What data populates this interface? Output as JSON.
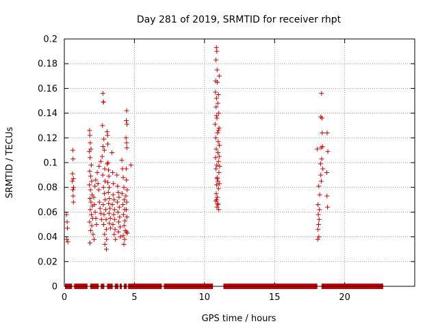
{
  "chart_data": {
    "type": "scatter",
    "title": "Day 281 of 2019, SRMTID for receiver rhpt",
    "xlabel": "GPS time / hours",
    "ylabel": "SRMTID / TECUs",
    "xlim": [
      0,
      25
    ],
    "ylim": [
      0,
      0.2
    ],
    "xticks": [
      0,
      5,
      10,
      15,
      20
    ],
    "xtick_labels": [
      "0",
      "5",
      "10",
      "15",
      "20"
    ],
    "yticks": [
      0,
      0.02,
      0.04,
      0.06,
      0.08,
      0.1,
      0.12,
      0.14,
      0.16,
      0.18,
      0.2
    ],
    "ytick_labels": [
      "0",
      "0.02",
      "0.04",
      "0.06",
      "0.08",
      "0.1",
      "0.12",
      "0.14",
      "0.16",
      "0.18",
      "0.2"
    ],
    "grid": true,
    "marker": "+",
    "colors": {
      "series": "#cc0000",
      "grid": "#999999",
      "axes": "#000000"
    },
    "zero_segments": [
      [
        0.05,
        0.55
      ],
      [
        0.7,
        1.65
      ],
      [
        1.85,
        2.45
      ],
      [
        2.6,
        2.85
      ],
      [
        3.05,
        3.45
      ],
      [
        3.6,
        3.85
      ],
      [
        3.95,
        4.1
      ],
      [
        4.25,
        4.45
      ],
      [
        4.55,
        6.95
      ],
      [
        7.1,
        10.6
      ],
      [
        11.35,
        18.05
      ],
      [
        18.35,
        22.75
      ]
    ],
    "points": [
      [
        0.15,
        0.058
      ],
      [
        0.2,
        0.052
      ],
      [
        0.22,
        0.047
      ],
      [
        0.18,
        0.038
      ],
      [
        0.25,
        0.036
      ],
      [
        0.6,
        0.11
      ],
      [
        0.62,
        0.103
      ],
      [
        0.58,
        0.091
      ],
      [
        0.64,
        0.087
      ],
      [
        0.57,
        0.085
      ],
      [
        0.66,
        0.08
      ],
      [
        0.61,
        0.078
      ],
      [
        0.63,
        0.073
      ],
      [
        0.65,
        0.068
      ],
      [
        1.8,
        0.126
      ],
      [
        1.82,
        0.122
      ],
      [
        1.85,
        0.116
      ],
      [
        1.9,
        0.111
      ],
      [
        1.78,
        0.109
      ],
      [
        1.84,
        0.104
      ],
      [
        1.92,
        0.098
      ],
      [
        1.81,
        0.093
      ],
      [
        1.88,
        0.089
      ],
      [
        1.95,
        0.085
      ],
      [
        1.79,
        0.082
      ],
      [
        1.86,
        0.078
      ],
      [
        1.98,
        0.074
      ],
      [
        1.83,
        0.071
      ],
      [
        1.9,
        0.068
      ],
      [
        2.0,
        0.065
      ],
      [
        1.85,
        0.062
      ],
      [
        1.93,
        0.058
      ],
      [
        2.02,
        0.055
      ],
      [
        1.8,
        0.052
      ],
      [
        1.96,
        0.049
      ],
      [
        1.88,
        0.045
      ],
      [
        2.05,
        0.042
      ],
      [
        1.83,
        0.035
      ],
      [
        2.1,
        0.072
      ],
      [
        2.15,
        0.066
      ],
      [
        2.2,
        0.06
      ],
      [
        2.25,
        0.055
      ],
      [
        2.3,
        0.05
      ],
      [
        2.18,
        0.081
      ],
      [
        2.24,
        0.086
      ],
      [
        2.35,
        0.092
      ],
      [
        2.4,
        0.083
      ],
      [
        2.45,
        0.078
      ],
      [
        2.12,
        0.038
      ],
      [
        2.5,
        0.068
      ],
      [
        2.55,
        0.063
      ],
      [
        2.6,
        0.059
      ],
      [
        2.65,
        0.054
      ],
      [
        2.48,
        0.097
      ],
      [
        2.6,
        0.101
      ],
      [
        2.75,
        0.156
      ],
      [
        2.78,
        0.149
      ],
      [
        2.8,
        0.149
      ],
      [
        2.72,
        0.13
      ],
      [
        2.82,
        0.119
      ],
      [
        2.76,
        0.113
      ],
      [
        2.85,
        0.11
      ],
      [
        2.7,
        0.105
      ],
      [
        2.88,
        0.095
      ],
      [
        2.74,
        0.09
      ],
      [
        2.9,
        0.085
      ],
      [
        2.79,
        0.08
      ],
      [
        2.86,
        0.075
      ],
      [
        2.92,
        0.07
      ],
      [
        2.77,
        0.066
      ],
      [
        2.95,
        0.062
      ],
      [
        2.83,
        0.058
      ],
      [
        2.98,
        0.054
      ],
      [
        2.81,
        0.05
      ],
      [
        3.0,
        0.046
      ],
      [
        2.87,
        0.042
      ],
      [
        3.02,
        0.038
      ],
      [
        2.89,
        0.034
      ],
      [
        3.0,
        0.03
      ],
      [
        3.05,
        0.125
      ],
      [
        3.08,
        0.122
      ],
      [
        3.1,
        0.115
      ],
      [
        3.12,
        0.1
      ],
      [
        3.06,
        0.099
      ],
      [
        3.15,
        0.094
      ],
      [
        3.18,
        0.089
      ],
      [
        3.1,
        0.084
      ],
      [
        3.2,
        0.08
      ],
      [
        3.14,
        0.076
      ],
      [
        3.22,
        0.071
      ],
      [
        3.16,
        0.067
      ],
      [
        3.25,
        0.063
      ],
      [
        3.19,
        0.059
      ],
      [
        3.28,
        0.055
      ],
      [
        3.21,
        0.051
      ],
      [
        3.3,
        0.047
      ],
      [
        3.4,
        0.108
      ],
      [
        3.45,
        0.092
      ],
      [
        3.5,
        0.083
      ],
      [
        3.48,
        0.074
      ],
      [
        3.55,
        0.07
      ],
      [
        3.42,
        0.066
      ],
      [
        3.58,
        0.062
      ],
      [
        3.52,
        0.058
      ],
      [
        3.6,
        0.054
      ],
      [
        3.47,
        0.05
      ],
      [
        3.62,
        0.046
      ],
      [
        3.56,
        0.042
      ],
      [
        3.65,
        0.038
      ],
      [
        3.75,
        0.09
      ],
      [
        3.8,
        0.081
      ],
      [
        3.85,
        0.076
      ],
      [
        3.9,
        0.072
      ],
      [
        3.78,
        0.068
      ],
      [
        3.92,
        0.064
      ],
      [
        3.82,
        0.06
      ],
      [
        3.95,
        0.056
      ],
      [
        3.88,
        0.052
      ],
      [
        3.98,
        0.048
      ],
      [
        3.86,
        0.044
      ],
      [
        4.0,
        0.04
      ],
      [
        4.1,
        0.102
      ],
      [
        4.15,
        0.095
      ],
      [
        4.2,
        0.088
      ],
      [
        4.25,
        0.08
      ],
      [
        4.12,
        0.075
      ],
      [
        4.28,
        0.07
      ],
      [
        4.18,
        0.066
      ],
      [
        4.3,
        0.062
      ],
      [
        4.22,
        0.058
      ],
      [
        4.32,
        0.053
      ],
      [
        4.26,
        0.049
      ],
      [
        4.35,
        0.045
      ],
      [
        4.2,
        0.041
      ],
      [
        4.3,
        0.038
      ],
      [
        4.25,
        0.034
      ],
      [
        4.45,
        0.142
      ],
      [
        4.42,
        0.134
      ],
      [
        4.47,
        0.131
      ],
      [
        4.4,
        0.12
      ],
      [
        4.44,
        0.116
      ],
      [
        4.46,
        0.112
      ],
      [
        4.41,
        0.095
      ],
      [
        4.43,
        0.086
      ],
      [
        4.48,
        0.078
      ],
      [
        4.39,
        0.073
      ],
      [
        4.45,
        0.068
      ],
      [
        4.42,
        0.062
      ],
      [
        4.47,
        0.056
      ],
      [
        4.44,
        0.044
      ],
      [
        4.49,
        0.043
      ],
      [
        4.75,
        0.098
      ],
      [
        10.85,
        0.193
      ],
      [
        10.88,
        0.19
      ],
      [
        10.82,
        0.183
      ],
      [
        10.9,
        0.175
      ],
      [
        10.8,
        0.166
      ],
      [
        10.92,
        0.165
      ],
      [
        11.05,
        0.17
      ],
      [
        10.78,
        0.157
      ],
      [
        11.0,
        0.155
      ],
      [
        10.86,
        0.152
      ],
      [
        10.95,
        0.148
      ],
      [
        10.83,
        0.145
      ],
      [
        11.02,
        0.14
      ],
      [
        10.89,
        0.136
      ],
      [
        10.76,
        0.131
      ],
      [
        11.04,
        0.128
      ],
      [
        10.93,
        0.124
      ],
      [
        10.8,
        0.12
      ],
      [
        10.98,
        0.117
      ],
      [
        11.06,
        0.114
      ],
      [
        10.84,
        0.111
      ],
      [
        10.96,
        0.108
      ],
      [
        10.79,
        0.104
      ],
      [
        11.0,
        0.101
      ],
      [
        10.88,
        0.098
      ],
      [
        10.82,
        0.095
      ],
      [
        11.03,
        0.092
      ],
      [
        10.9,
        0.088
      ],
      [
        10.95,
        0.085
      ],
      [
        10.87,
        0.082
      ],
      [
        11.0,
        0.079
      ],
      [
        10.84,
        0.075
      ],
      [
        10.92,
        0.072
      ],
      [
        10.8,
        0.069
      ],
      [
        10.97,
        0.066
      ],
      [
        10.89,
        0.064
      ],
      [
        11.02,
        0.062
      ],
      [
        10.94,
        0.067
      ],
      [
        10.86,
        0.07
      ],
      [
        11.07,
        0.083
      ],
      [
        11.08,
        0.097
      ],
      [
        11.05,
        0.105
      ],
      [
        10.91,
        0.087
      ],
      [
        10.99,
        0.126
      ],
      [
        10.85,
        0.138
      ],
      [
        18.35,
        0.156
      ],
      [
        18.3,
        0.137
      ],
      [
        18.38,
        0.136
      ],
      [
        18.4,
        0.124
      ],
      [
        18.32,
        0.112
      ],
      [
        18.42,
        0.113
      ],
      [
        18.05,
        0.111
      ],
      [
        18.36,
        0.103
      ],
      [
        18.28,
        0.099
      ],
      [
        18.44,
        0.095
      ],
      [
        18.3,
        0.09
      ],
      [
        18.15,
        0.081
      ],
      [
        18.33,
        0.085
      ],
      [
        18.22,
        0.074
      ],
      [
        18.1,
        0.066
      ],
      [
        18.2,
        0.062
      ],
      [
        18.12,
        0.058
      ],
      [
        18.18,
        0.054
      ],
      [
        18.14,
        0.05
      ],
      [
        18.1,
        0.046
      ],
      [
        18.16,
        0.04
      ],
      [
        18.08,
        0.038
      ],
      [
        18.75,
        0.124
      ],
      [
        18.8,
        0.109
      ],
      [
        18.72,
        0.092
      ],
      [
        18.74,
        0.073
      ],
      [
        18.78,
        0.064
      ]
    ]
  }
}
